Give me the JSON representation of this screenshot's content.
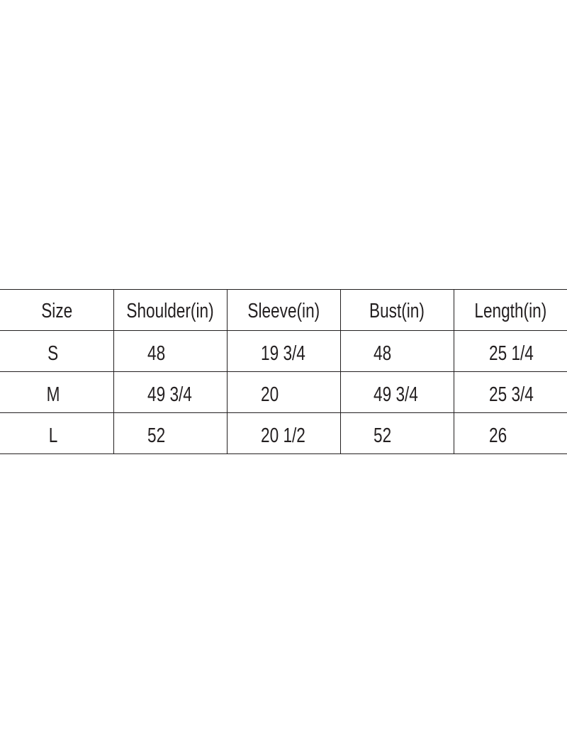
{
  "table": {
    "headers": [
      "Size",
      "Shoulder(in)",
      "Sleeve(in)",
      "Bust(in)",
      "Length(in)"
    ],
    "rows": [
      [
        "S",
        "48",
        "19 3/4",
        "48",
        "25 1/4"
      ],
      [
        "M",
        "49 3/4",
        "20",
        "49 3/4",
        "25 3/4"
      ],
      [
        "L",
        "52",
        "20 1/2",
        "52",
        "26"
      ]
    ]
  }
}
